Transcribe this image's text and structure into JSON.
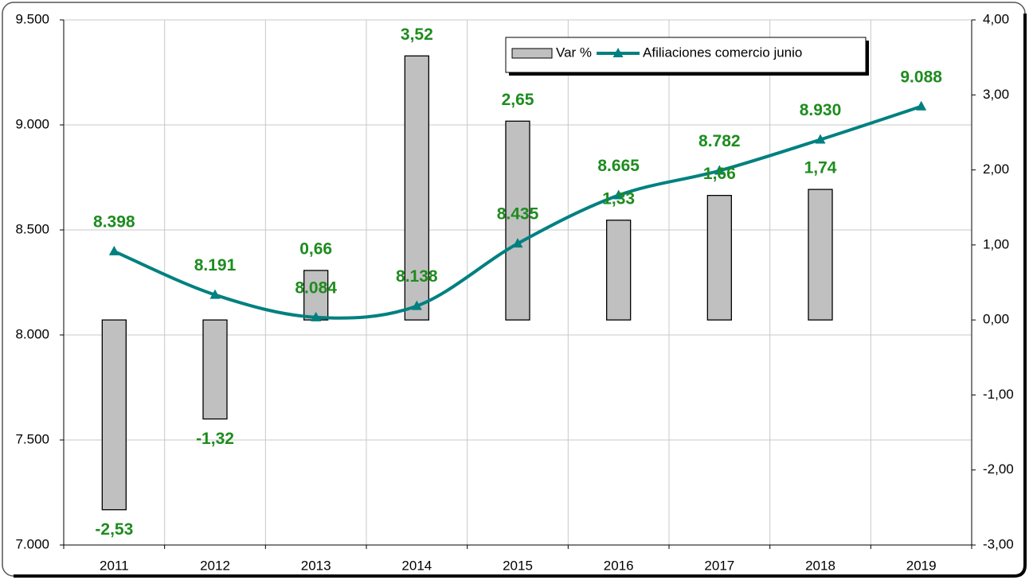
{
  "chart_data": {
    "type": "bar-line",
    "categories": [
      "2011",
      "2012",
      "2013",
      "2014",
      "2015",
      "2016",
      "2017",
      "2018",
      "2019"
    ],
    "series": [
      {
        "name": "Var %",
        "type": "bar",
        "axis": "y2",
        "color": "#c0c0c0",
        "values": [
          -2.53,
          -1.32,
          0.66,
          3.52,
          2.65,
          1.33,
          1.66,
          1.74,
          null
        ],
        "value_labels": [
          "-2,53",
          "-1,32",
          "0,66",
          "3,52",
          "2,65",
          "1,33",
          "1,66",
          "1,74",
          null
        ]
      },
      {
        "name": "Afiliaciones comercio junio",
        "type": "line",
        "axis": "y",
        "color": "#008080",
        "values": [
          8398,
          8191,
          8084,
          8138,
          8435,
          8665,
          8782,
          8930,
          9088
        ],
        "value_labels": [
          "8.398",
          "8.191",
          "8.084",
          "8.138",
          "8.435",
          "8.665",
          "8.782",
          "8.930",
          "9.088"
        ]
      }
    ],
    "ylim": [
      7000,
      9500
    ],
    "yticks": [
      {
        "value": 7000,
        "label": "7.000"
      },
      {
        "value": 7500,
        "label": "7.500"
      },
      {
        "value": 8000,
        "label": "8.000"
      },
      {
        "value": 8500,
        "label": "8.500"
      },
      {
        "value": 9000,
        "label": "9.000"
      },
      {
        "value": 9500,
        "label": "9.500"
      }
    ],
    "y2lim": [
      -3,
      4
    ],
    "y2ticks": [
      {
        "value": -3,
        "label": "-3,00"
      },
      {
        "value": -2,
        "label": "-2,00"
      },
      {
        "value": -1,
        "label": "-1,00"
      },
      {
        "value": 0,
        "label": "0,00"
      },
      {
        "value": 1,
        "label": "1,00"
      },
      {
        "value": 2,
        "label": "2,00"
      },
      {
        "value": 3,
        "label": "3,00"
      },
      {
        "value": 4,
        "label": "4,00"
      }
    ],
    "grid": true,
    "label_color": "#1e8c1e"
  }
}
